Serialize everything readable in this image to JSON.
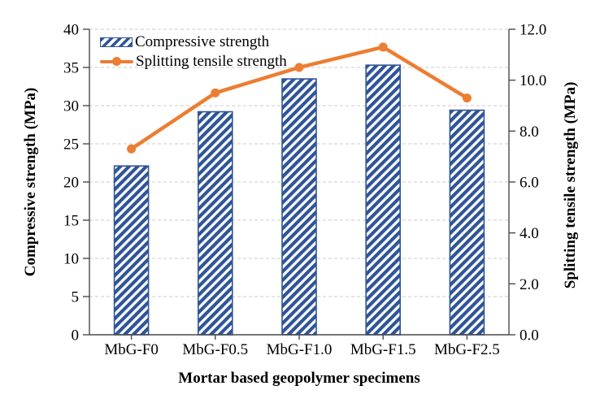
{
  "chart_data": {
    "type": "bar",
    "subtype": "bar+line dual axis",
    "categories": [
      "MbG-F0",
      "MbG-F0.5",
      "MbG-F1.0",
      "MbG-F1.5",
      "MbG-F2.5"
    ],
    "series": [
      {
        "name": "Compressive strength",
        "type": "bar",
        "axis": "left",
        "values": [
          22.1,
          29.2,
          33.5,
          35.3,
          29.4
        ],
        "color": "#2F5597",
        "fill_style": "diagonal-hatch"
      },
      {
        "name": "Splitting tensile strength",
        "type": "line",
        "axis": "right",
        "values": [
          7.3,
          9.5,
          10.5,
          11.3,
          9.3
        ],
        "color": "#ED7D31",
        "marker": "circle"
      }
    ],
    "title": "",
    "xlabel": "Mortar based geopolymer specimens",
    "ylabel_left": "Compressive strength (MPa)",
    "ylabel_right": "Splitting tensile strength (MPa)",
    "left_axis": {
      "min": 0,
      "max": 40,
      "step": 5,
      "tick_labels": [
        "0",
        "5",
        "10",
        "15",
        "20",
        "25",
        "30",
        "35",
        "40"
      ]
    },
    "right_axis": {
      "min": 0,
      "max": 12,
      "step": 2,
      "tick_labels": [
        "0.0",
        "2.0",
        "4.0",
        "6.0",
        "8.0",
        "10.0",
        "12.0"
      ]
    },
    "grid": "horizontal dashed, at left-axis steps of 5",
    "legend_position": "inside top-left"
  }
}
